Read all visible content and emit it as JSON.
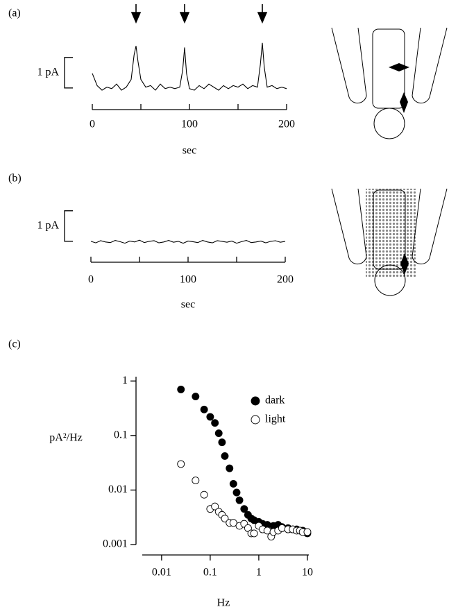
{
  "chart_data": [
    {
      "type": "line",
      "panel_label": "(a)",
      "xlabel": "sec",
      "x": [
        0,
        5,
        10,
        15,
        20,
        25,
        30,
        35,
        40,
        43,
        45,
        47,
        50,
        55,
        60,
        65,
        70,
        75,
        80,
        85,
        90,
        93,
        95,
        97,
        100,
        105,
        110,
        115,
        120,
        125,
        130,
        135,
        140,
        145,
        150,
        155,
        160,
        165,
        170,
        173,
        175,
        177,
        180,
        185,
        190,
        195,
        200
      ],
      "values": [
        0.5,
        0.1,
        -0.05,
        0.05,
        0.0,
        0.15,
        -0.05,
        0.05,
        0.3,
        1.1,
        1.4,
        0.9,
        0.3,
        0.05,
        0.1,
        -0.05,
        0.15,
        0.0,
        0.05,
        0.0,
        0.05,
        0.6,
        1.35,
        0.5,
        0.0,
        -0.05,
        0.1,
        0.0,
        0.15,
        0.05,
        -0.05,
        0.1,
        0.0,
        0.1,
        0.05,
        0.15,
        0.0,
        0.1,
        0.05,
        0.8,
        1.5,
        0.7,
        0.05,
        0.1,
        0.0,
        0.05,
        0.0
      ],
      "color": "#000000",
      "xlim": [
        0,
        200
      ],
      "xticks": [
        0,
        100,
        200
      ],
      "xminor_ticks": [
        50,
        150
      ],
      "ylim": [
        -0.3,
        1.7
      ],
      "scale_bar": {
        "value": 1,
        "label": "1 pA"
      },
      "event_markers": [
        45,
        95,
        175
      ]
    },
    {
      "type": "line",
      "panel_label": "(b)",
      "xlabel": "sec",
      "x": [
        0,
        5,
        10,
        15,
        20,
        25,
        30,
        35,
        40,
        45,
        50,
        55,
        60,
        65,
        70,
        75,
        80,
        85,
        90,
        95,
        100,
        105,
        110,
        115,
        120,
        125,
        130,
        135,
        140,
        145,
        150,
        155,
        160,
        165,
        170,
        175,
        180,
        185,
        190,
        195,
        200
      ],
      "values": [
        0.02,
        -0.03,
        0.04,
        0.0,
        -0.02,
        0.05,
        0.01,
        -0.04,
        0.03,
        0.0,
        0.06,
        -0.02,
        0.02,
        0.04,
        -0.03,
        0.0,
        0.05,
        -0.01,
        0.02,
        -0.04,
        0.03,
        0.01,
        -0.02,
        0.05,
        0.0,
        -0.03,
        0.04,
        0.02,
        -0.01,
        0.03,
        -0.04,
        0.01,
        0.05,
        -0.02,
        0.0,
        0.03,
        -0.03,
        0.02,
        0.04,
        -0.01,
        0.02
      ],
      "color": "#000000",
      "xlim": [
        0,
        200
      ],
      "xticks": [
        0,
        100,
        200
      ],
      "xminor_ticks": [
        50,
        150
      ],
      "ylim": [
        -0.3,
        1.7
      ],
      "scale_bar": {
        "value": 1,
        "label": "1 pA"
      }
    },
    {
      "type": "scatter",
      "panel_label": "(c)",
      "xlabel": "Hz",
      "ylabel": "pA²/Hz",
      "log_x": true,
      "log_y": true,
      "xlim": [
        0.004,
        10.7
      ],
      "xticks": [
        0.01,
        0.1,
        1,
        10
      ],
      "ylim": [
        0.001,
        1.2
      ],
      "yticks": [
        0.001,
        0.01,
        0.1,
        1
      ],
      "legend": "upper right",
      "series": [
        {
          "name": "dark",
          "color": "#000000",
          "filled": true,
          "x": [
            0.025,
            0.05,
            0.075,
            0.1,
            0.125,
            0.15,
            0.175,
            0.2,
            0.25,
            0.3,
            0.35,
            0.4,
            0.5,
            0.6,
            0.7,
            0.8,
            1,
            1.2,
            1.5,
            2,
            2.5,
            3,
            4,
            5,
            6,
            7,
            8,
            9,
            10
          ],
          "values": [
            0.7,
            0.52,
            0.3,
            0.22,
            0.17,
            0.11,
            0.075,
            0.042,
            0.025,
            0.013,
            0.009,
            0.0065,
            0.0045,
            0.0035,
            0.003,
            0.0028,
            0.0026,
            0.0024,
            0.0023,
            0.0022,
            0.0023,
            0.0021,
            0.002,
            0.0019,
            0.0019,
            0.0018,
            0.0018,
            0.0017,
            0.0016
          ]
        },
        {
          "name": "light",
          "color": "#000000",
          "filled": false,
          "x": [
            0.025,
            0.05,
            0.075,
            0.1,
            0.125,
            0.15,
            0.175,
            0.2,
            0.25,
            0.3,
            0.4,
            0.5,
            0.6,
            0.7,
            0.8,
            1,
            1.2,
            1.5,
            1.8,
            2,
            2.5,
            3,
            4,
            5,
            6,
            7,
            8,
            10
          ],
          "values": [
            0.03,
            0.015,
            0.0082,
            0.0045,
            0.005,
            0.004,
            0.0035,
            0.003,
            0.0025,
            0.0025,
            0.0022,
            0.0024,
            0.002,
            0.0016,
            0.0016,
            0.0022,
            0.0019,
            0.0018,
            0.0014,
            0.0017,
            0.0018,
            0.002,
            0.0019,
            0.0019,
            0.0018,
            0.0018,
            0.0017,
            0.0017
          ]
        }
      ]
    }
  ]
}
